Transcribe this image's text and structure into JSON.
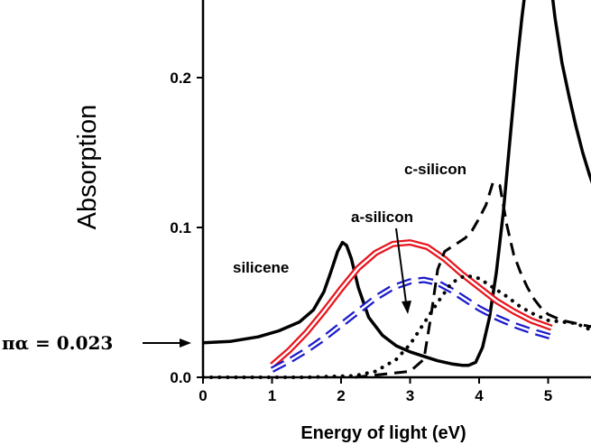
{
  "chart_data": {
    "type": "line",
    "xlabel": "Energy of light (eV)",
    "ylabel": "Absorption",
    "xlim": [
      0,
      5.7
    ],
    "ylim": [
      0,
      0.25
    ],
    "x_ticks": [
      "0",
      "1",
      "2",
      "3",
      "4",
      "5"
    ],
    "y_ticks": [
      "0.0",
      "0.1",
      "0.2"
    ],
    "grid": false,
    "legend": "none",
    "annotations": {
      "silicene": "silicene",
      "a_silicon": "a-silicon",
      "c_silicon": "c-silicon",
      "pi_alpha": "πα = 0.023"
    },
    "series": [
      {
        "style": "solid-black",
        "color": "#000000",
        "x": [
          0,
          0.4,
          0.8,
          1.1,
          1.4,
          1.6,
          1.75,
          1.85,
          1.95,
          2.02,
          2.08,
          2.15,
          2.25,
          2.4,
          2.6,
          2.8,
          3.0,
          3.2,
          3.4,
          3.6,
          3.75,
          3.85,
          3.95,
          4.05,
          4.15,
          4.25,
          4.35,
          4.45,
          4.55,
          4.62,
          4.66,
          4.7,
          5.02,
          5.06,
          5.1,
          5.2,
          5.3,
          5.4,
          5.5,
          5.6,
          5.7
        ],
        "y": [
          0.023,
          0.024,
          0.027,
          0.031,
          0.037,
          0.045,
          0.057,
          0.07,
          0.084,
          0.09,
          0.088,
          0.079,
          0.06,
          0.04,
          0.028,
          0.021,
          0.017,
          0.014,
          0.011,
          0.009,
          0.008,
          0.008,
          0.01,
          0.02,
          0.04,
          0.07,
          0.11,
          0.16,
          0.21,
          0.24,
          0.255,
          0.27,
          0.27,
          0.255,
          0.24,
          0.21,
          0.188,
          0.168,
          0.15,
          0.135,
          0.122
        ]
      },
      {
        "style": "double-red",
        "color": "#e8141c",
        "x": [
          1,
          1.25,
          1.5,
          1.75,
          2,
          2.25,
          2.5,
          2.75,
          3.0,
          3.25,
          3.5,
          3.75,
          4,
          4.25,
          4.5,
          4.75,
          5.05
        ],
        "y": [
          0.008,
          0.018,
          0.03,
          0.044,
          0.059,
          0.073,
          0.083,
          0.089,
          0.09,
          0.087,
          0.079,
          0.069,
          0.06,
          0.051,
          0.044,
          0.038,
          0.033
        ]
      },
      {
        "style": "double-blue-dashed",
        "color": "#1a1acc",
        "x": [
          1,
          1.25,
          1.5,
          1.75,
          2,
          2.25,
          2.5,
          2.75,
          3.0,
          3.2,
          3.4,
          3.6,
          3.8,
          4,
          4.25,
          4.5,
          4.75,
          5.05
        ],
        "y": [
          0.005,
          0.011,
          0.018,
          0.026,
          0.035,
          0.044,
          0.053,
          0.06,
          0.064,
          0.065,
          0.063,
          0.058,
          0.052,
          0.046,
          0.04,
          0.035,
          0.031,
          0.027
        ]
      },
      {
        "style": "dotted-black",
        "color": "#000000",
        "x": [
          0,
          1.5,
          2.2,
          2.5,
          2.8,
          3.0,
          3.2,
          3.4,
          3.6,
          3.8,
          4.0,
          4.2,
          4.4,
          4.6,
          4.8,
          5.0,
          5.2,
          5.4,
          5.6,
          5.7
        ],
        "y": [
          0,
          0,
          0.001,
          0.004,
          0.012,
          0.022,
          0.036,
          0.05,
          0.063,
          0.068,
          0.066,
          0.06,
          0.054,
          0.047,
          0.042,
          0.038,
          0.037,
          0.036,
          0.032,
          0.031
        ]
      },
      {
        "style": "dashed-black",
        "color": "#000000",
        "x": [
          2.2,
          3.0,
          3.2,
          3.3,
          3.4,
          3.5,
          3.6,
          3.7,
          3.8,
          3.9,
          4.0,
          4.1,
          4.2,
          4.3,
          4.4,
          4.5,
          4.6,
          4.7,
          4.8,
          4.9,
          5.0,
          5.1,
          5.2,
          5.3,
          5.4,
          5.5,
          5.6,
          5.7
        ],
        "y": [
          0,
          0.004,
          0.012,
          0.04,
          0.072,
          0.084,
          0.087,
          0.09,
          0.093,
          0.098,
          0.106,
          0.115,
          0.13,
          0.128,
          0.102,
          0.082,
          0.07,
          0.06,
          0.052,
          0.046,
          0.042,
          0.04,
          0.038,
          0.037,
          0.036,
          0.035,
          0.034,
          0.034
        ]
      }
    ]
  }
}
